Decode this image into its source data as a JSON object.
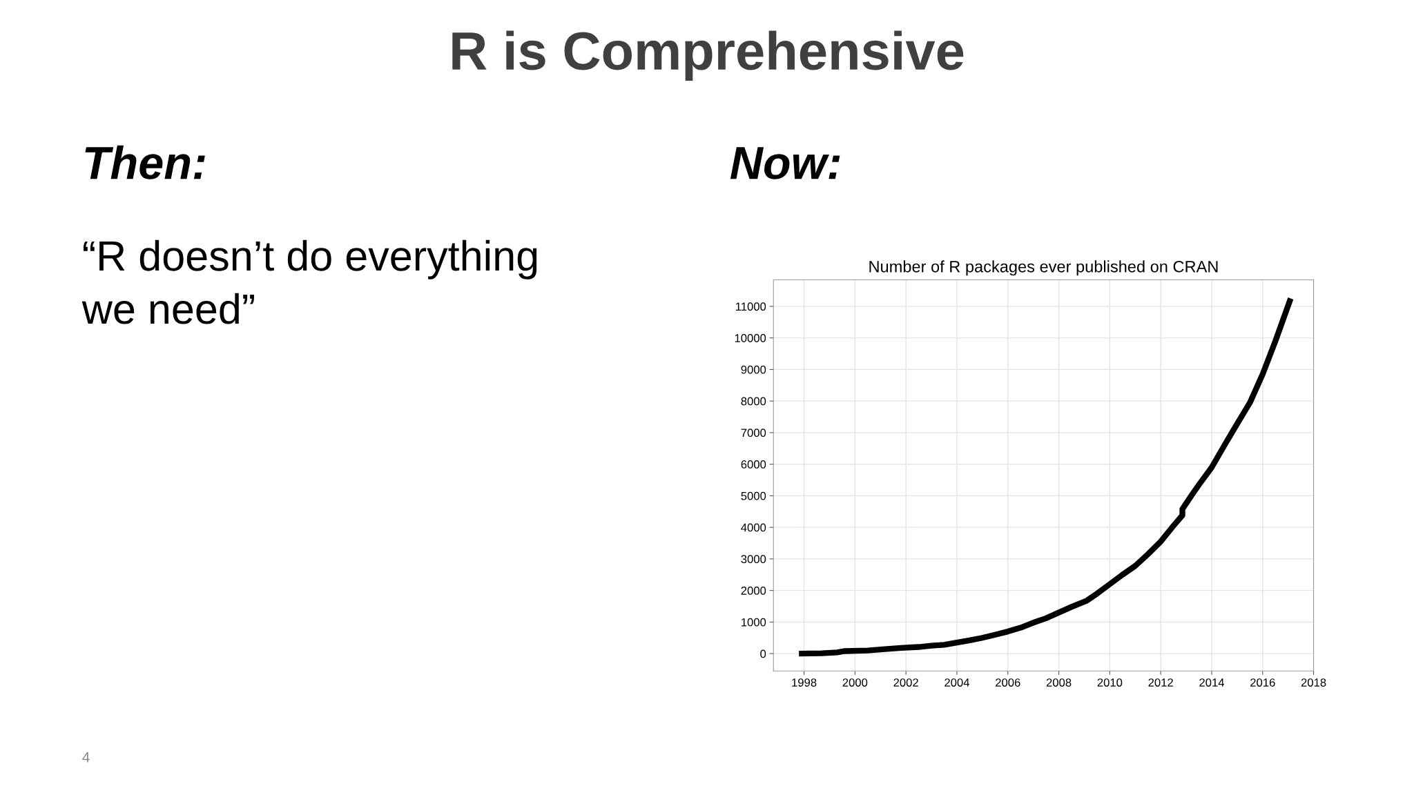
{
  "chart_data": {
    "type": "line",
    "title": "Number of R packages ever published on CRAN",
    "annotations": [
      "R is Comprehensive",
      "Then:",
      "“R doesn’t do everything\nwe need”",
      "Now:",
      "4"
    ],
    "series": [
      {
        "color": "#000000",
        "x": [
          1997.8,
          1998.7,
          1999.3,
          1999.6,
          2000.5,
          2001.0,
          2001.8,
          2002.5,
          2003.0,
          2003.5,
          2004.0,
          2004.5,
          2005.0,
          2005.5,
          2006.0,
          2006.5,
          2007.0,
          2007.5,
          2008.0,
          2008.5,
          2009.1,
          2009.5,
          2010.0,
          2010.5,
          2011.0,
          2011.5,
          2012.0,
          2012.5,
          2012.85,
          2012.85,
          2013.2,
          2013.5,
          2014.0,
          2014.5,
          2015.0,
          2015.5,
          2016.0,
          2016.5,
          2017.1
        ],
        "values": [
          0,
          10,
          40,
          80,
          100,
          130,
          180,
          210,
          250,
          280,
          350,
          420,
          500,
          600,
          700,
          820,
          980,
          1120,
          1300,
          1480,
          1680,
          1900,
          2200,
          2500,
          2780,
          3150,
          3550,
          4050,
          4380,
          4580,
          5000,
          5350,
          5900,
          6600,
          7280,
          7950,
          8850,
          9900,
          11250
        ]
      }
    ],
    "xlim": [
      1996.8,
      2018.0
    ],
    "xticks": [
      1998,
      2000,
      2002,
      2004,
      2006,
      2008,
      2010,
      2012,
      2014,
      2016,
      2018
    ],
    "ylim": [
      -550,
      11840
    ],
    "yticks": [
      0,
      1000,
      2000,
      3000,
      4000,
      5000,
      6000,
      7000,
      8000,
      9000,
      10000,
      11000
    ],
    "grid": true,
    "line_style": "solid",
    "marker": "none"
  }
}
